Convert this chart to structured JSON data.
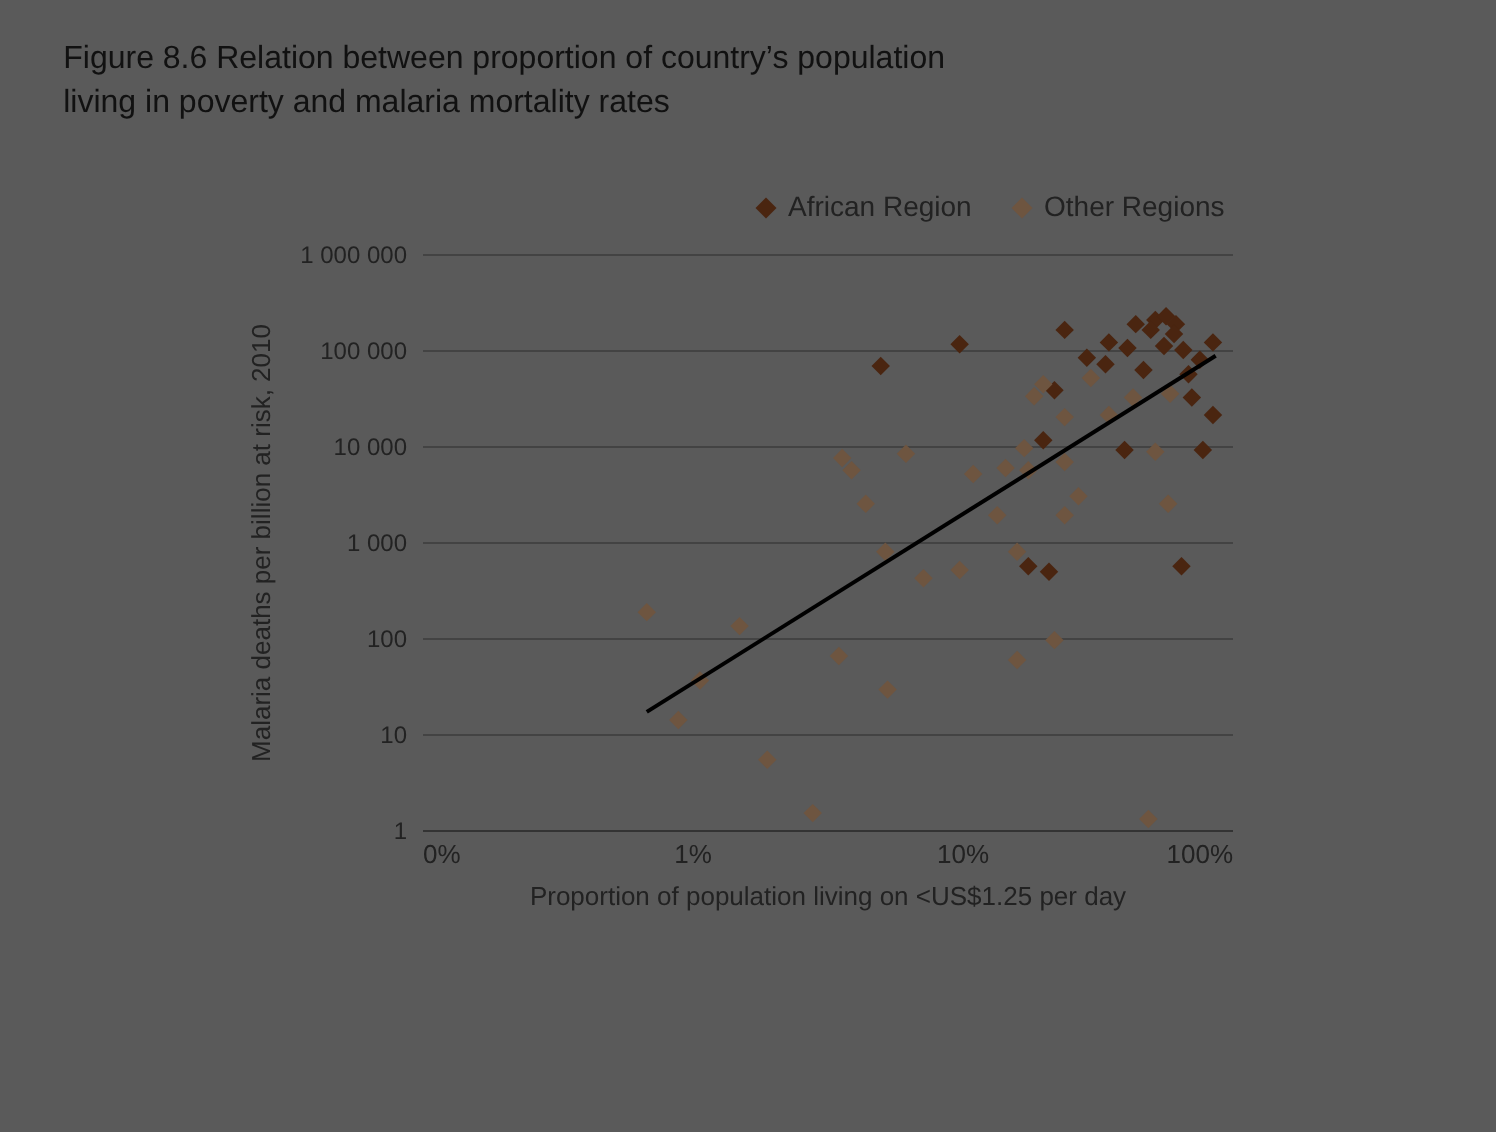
{
  "chart_data": {
    "type": "scatter",
    "title": [
      "Figure 8.6 Relation between proportion of country’s population",
      "living in poverty and malaria mortality rates"
    ],
    "xlabel": "Proportion of population living on <US$1.25 per day",
    "ylabel": "Malaria deaths per billion at risk, 2010",
    "log": "xy",
    "grid": "y",
    "legend": "top right",
    "marker": "diamond",
    "xlim": [
      0.1,
      100
    ],
    "xticks": [
      {
        "value": 0.1,
        "label": "0%"
      },
      {
        "value": 1,
        "label": "1%"
      },
      {
        "value": 10,
        "label": "10%"
      },
      {
        "value": 100,
        "label": "100%"
      }
    ],
    "ylim": [
      1,
      1000000
    ],
    "yticks": [
      1,
      10,
      100,
      {
        "value": 1000,
        "label": "1 000"
      },
      {
        "value": 10000,
        "label": "10 000"
      },
      {
        "value": 100000,
        "label": "100 000"
      },
      {
        "value": 1000000,
        "label": "1 000 000"
      }
    ],
    "series": [
      {
        "name": "African Region",
        "color": "#4a2510",
        "x": [
          9.8,
          5.0,
          24,
          22,
          20,
          17.6,
          21,
          29,
          34,
          35,
          41,
          44,
          47,
          40,
          52,
          57,
          62,
          56,
          66,
          76,
          85,
          69,
          71,
          85,
          78,
          65,
          50,
          61
        ],
        "values": [
          115000,
          68000,
          162000,
          38000,
          11500,
          560,
          490,
          83000,
          71000,
          120000,
          105000,
          186000,
          62000,
          9100,
          205000,
          225000,
          186000,
          110000,
          100000,
          79000,
          120000,
          56000,
          32000,
          21000,
          9100,
          560,
          162000,
          147000
        ]
      },
      {
        "name": "Other Regions",
        "color": "#6e5540",
        "x": [
          0.68,
          0.89,
          1.07,
          1.5,
          1.9,
          2.8,
          3.5,
          5.3,
          3.6,
          3.9,
          4.4,
          6.2,
          5.2,
          7.2,
          9.8,
          11,
          13.5,
          14.5,
          16,
          16,
          17,
          17.6,
          18.5,
          20,
          22,
          24,
          24,
          24,
          27,
          30,
          35,
          43,
          49,
          52,
          58,
          59
        ],
        "values": [
          186,
          14,
          36,
          133,
          5.4,
          1.5,
          65,
          29,
          7500,
          5600,
          2500,
          8300,
          790,
          420,
          510,
          5100,
          1900,
          5900,
          790,
          59,
          9500,
          5600,
          33000,
          44000,
          95,
          20000,
          6800,
          1900,
          3000,
          51000,
          21000,
          32000,
          1.3,
          8700,
          2500,
          35000
        ]
      },
      {
        "type": "line",
        "marker": "none",
        "line_style": "solid",
        "color": "#000000",
        "x": [
          0.68,
          87
        ],
        "values": [
          17,
          87000
        ]
      }
    ]
  }
}
